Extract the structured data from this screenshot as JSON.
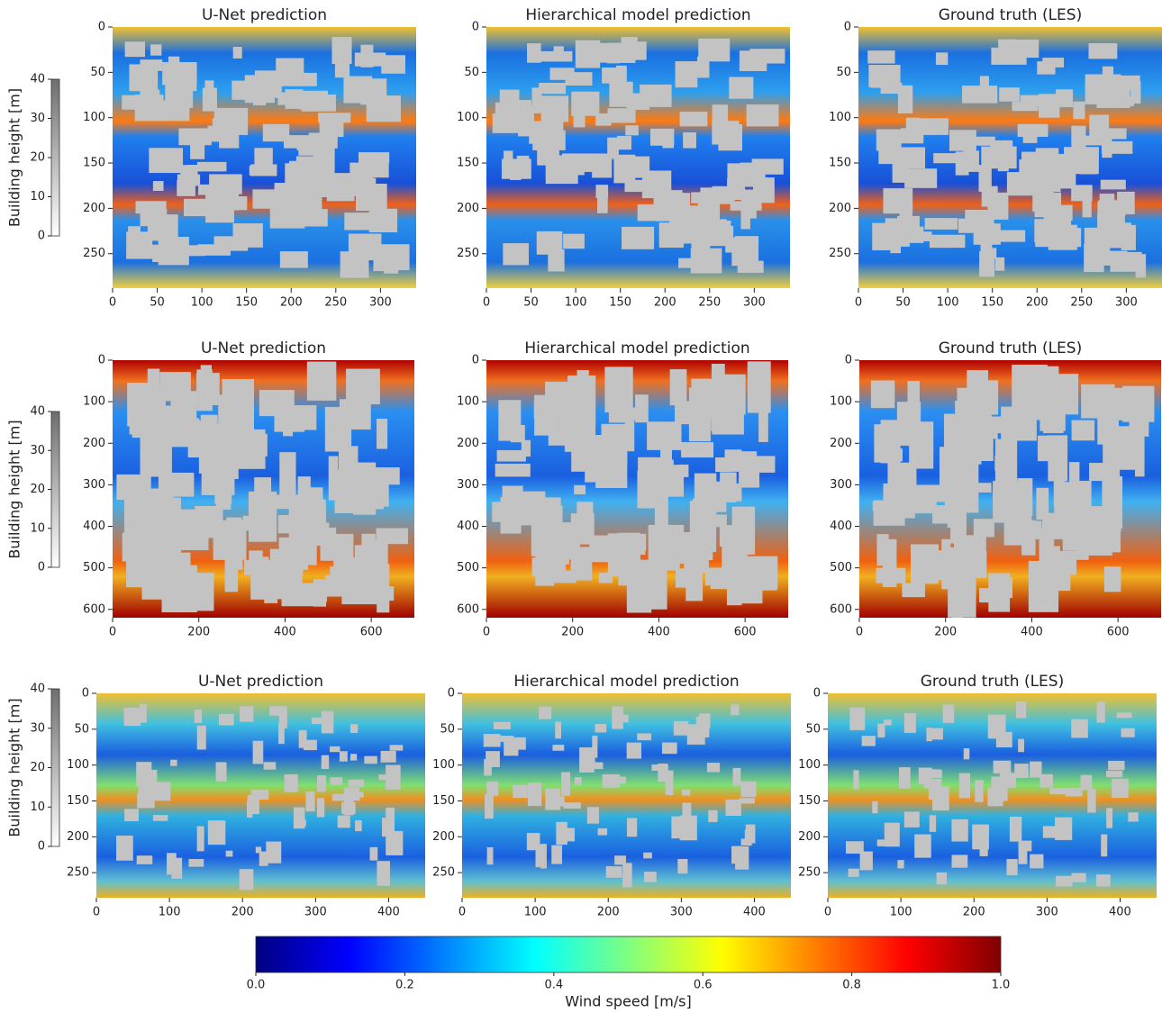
{
  "chart_data": [
    {
      "type": "heatmap",
      "title": "U-Net prediction",
      "xlim": [
        0,
        340
      ],
      "xticks": [
        0,
        50,
        100,
        150,
        200,
        250,
        300
      ],
      "ylim": [
        0,
        288
      ],
      "yticks": [
        0,
        50,
        100,
        150,
        200,
        250
      ],
      "y_inverted": true
    },
    {
      "type": "heatmap",
      "title": "Hierarchical model prediction",
      "xlim": [
        0,
        340
      ],
      "xticks": [
        0,
        50,
        100,
        150,
        200,
        250,
        300
      ],
      "ylim": [
        0,
        288
      ],
      "yticks": [
        0,
        50,
        100,
        150,
        200,
        250
      ],
      "y_inverted": true
    },
    {
      "type": "heatmap",
      "title": "Ground truth (LES)",
      "xlim": [
        0,
        340
      ],
      "xticks": [
        0,
        50,
        100,
        150,
        200,
        250,
        300
      ],
      "ylim": [
        0,
        288
      ],
      "yticks": [
        0,
        50,
        100,
        150,
        200,
        250
      ],
      "y_inverted": true
    },
    {
      "type": "heatmap",
      "title": "U-Net prediction",
      "xlim": [
        0,
        700
      ],
      "xticks": [
        0,
        200,
        400,
        600
      ],
      "ylim": [
        0,
        620
      ],
      "yticks": [
        0,
        100,
        200,
        300,
        400,
        500,
        600
      ],
      "y_inverted": true
    },
    {
      "type": "heatmap",
      "title": "Hierarchical model prediction",
      "xlim": [
        0,
        700
      ],
      "xticks": [
        0,
        200,
        400,
        600
      ],
      "ylim": [
        0,
        620
      ],
      "yticks": [
        0,
        100,
        200,
        300,
        400,
        500,
        600
      ],
      "y_inverted": true
    },
    {
      "type": "heatmap",
      "title": "Ground truth (LES)",
      "xlim": [
        0,
        700
      ],
      "xticks": [
        0,
        200,
        400,
        600
      ],
      "ylim": [
        0,
        620
      ],
      "yticks": [
        0,
        100,
        200,
        300,
        400,
        500,
        600
      ],
      "y_inverted": true
    },
    {
      "type": "heatmap",
      "title": "U-Net prediction",
      "xlim": [
        0,
        450
      ],
      "xticks": [
        0,
        100,
        200,
        300,
        400
      ],
      "ylim": [
        0,
        285
      ],
      "yticks": [
        0,
        50,
        100,
        150,
        200,
        250
      ],
      "y_inverted": true
    },
    {
      "type": "heatmap",
      "title": "Hierarchical model prediction",
      "xlim": [
        0,
        450
      ],
      "xticks": [
        0,
        100,
        200,
        300,
        400
      ],
      "ylim": [
        0,
        285
      ],
      "yticks": [
        0,
        50,
        100,
        150,
        200,
        250
      ],
      "y_inverted": true
    },
    {
      "type": "heatmap",
      "title": "Ground truth (LES)",
      "xlim": [
        0,
        450
      ],
      "xticks": [
        0,
        100,
        200,
        300,
        400
      ],
      "ylim": [
        0,
        285
      ],
      "yticks": [
        0,
        50,
        100,
        150,
        200,
        250
      ],
      "y_inverted": true
    },
    {
      "type": "colorbar",
      "orientation": "vertical",
      "label": "Building height [m]",
      "lim": [
        0,
        40
      ],
      "ticks": [
        0,
        10,
        20,
        30,
        40
      ],
      "colors": [
        "#ffffff",
        "#6e6e6e"
      ]
    },
    {
      "type": "colorbar",
      "orientation": "vertical",
      "label": "Building height [m]",
      "lim": [
        0,
        40
      ],
      "ticks": [
        0,
        10,
        20,
        30,
        40
      ],
      "colors": [
        "#ffffff",
        "#6e6e6e"
      ]
    },
    {
      "type": "colorbar",
      "orientation": "vertical",
      "label": "Building height [m]",
      "lim": [
        0,
        40
      ],
      "ticks": [
        0,
        10,
        20,
        30,
        40
      ],
      "colors": [
        "#ffffff",
        "#6e6e6e"
      ]
    },
    {
      "type": "colorbar",
      "orientation": "horizontal",
      "label": "Wind speed [m/s]",
      "lim": [
        0,
        1
      ],
      "ticks": [
        {
          "value": 0,
          "label": "0.0"
        },
        {
          "value": 0.2,
          "label": "0.2"
        },
        {
          "value": 0.4,
          "label": "0.4"
        },
        {
          "value": 0.6,
          "label": "0.6"
        },
        {
          "value": 0.8,
          "label": "0.8"
        },
        {
          "value": 1,
          "label": "1.0"
        }
      ],
      "colors": [
        "#00007f",
        "#0000ff",
        "#007fff",
        "#00ffff",
        "#7fff7f",
        "#ffff00",
        "#ff7f00",
        "#ff0000",
        "#7f0000"
      ]
    }
  ]
}
